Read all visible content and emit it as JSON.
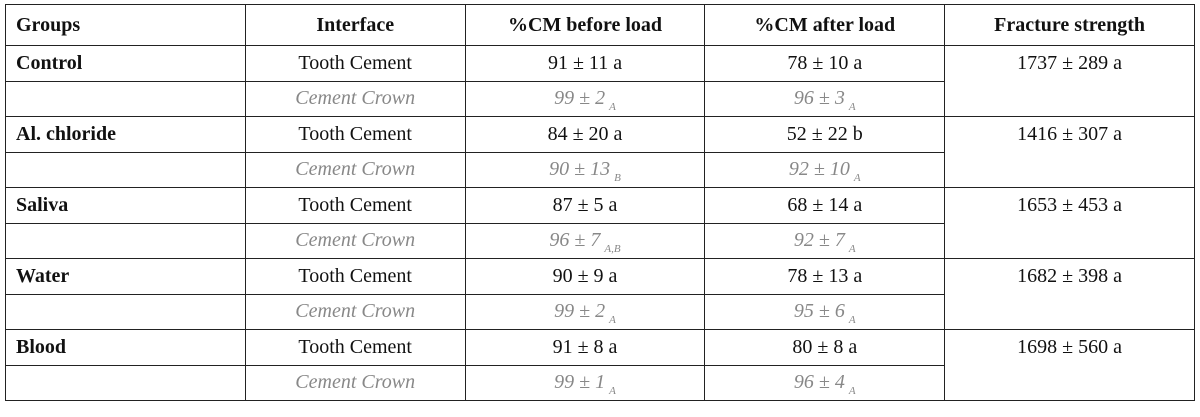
{
  "table": {
    "header": [
      "Groups",
      "Interface",
      "%CM before load",
      "%CM after load",
      "Fracture strength"
    ],
    "groups": [
      {
        "name": "Control",
        "fracture": "1737 ± 289 a",
        "rows": [
          {
            "interface": "Tooth Cement",
            "before": "91 ± 11 a",
            "after": "78 ± 10 a"
          },
          {
            "interface": "Cement Crown",
            "before": "99 ± 2",
            "before_sub": "A",
            "after": "96 ± 3",
            "after_sub": "A"
          }
        ]
      },
      {
        "name": "Al. chloride",
        "fracture": "1416 ± 307 a",
        "rows": [
          {
            "interface": "Tooth Cement",
            "before": "84 ± 20 a",
            "after": "52 ± 22 b"
          },
          {
            "interface": "Cement Crown",
            "before": "90 ± 13",
            "before_sub": "B",
            "after": "92 ± 10",
            "after_sub": "A"
          }
        ]
      },
      {
        "name": "Saliva",
        "fracture": "1653 ± 453 a",
        "rows": [
          {
            "interface": "Tooth Cement",
            "before": "87 ± 5 a",
            "after": "68 ± 14 a"
          },
          {
            "interface": "Cement Crown",
            "before": "96 ± 7",
            "before_sub": "A,B",
            "after": "92 ± 7",
            "after_sub": "A"
          }
        ]
      },
      {
        "name": "Water",
        "fracture": "1682 ± 398 a",
        "rows": [
          {
            "interface": "Tooth Cement",
            "before": "90 ± 9 a",
            "after": "78 ± 13 a"
          },
          {
            "interface": "Cement Crown",
            "before": "99 ± 2",
            "before_sub": "A",
            "after": "95 ± 6",
            "after_sub": "A"
          }
        ]
      },
      {
        "name": "Blood",
        "fracture": "1698 ± 560 a",
        "rows": [
          {
            "interface": "Tooth Cement",
            "before": "91 ± 8 a",
            "after": "80 ± 8 a"
          },
          {
            "interface": "Cement Crown",
            "before": "99 ± 1",
            "before_sub": "A",
            "after": "96 ± 4",
            "after_sub": "A"
          }
        ]
      }
    ]
  }
}
